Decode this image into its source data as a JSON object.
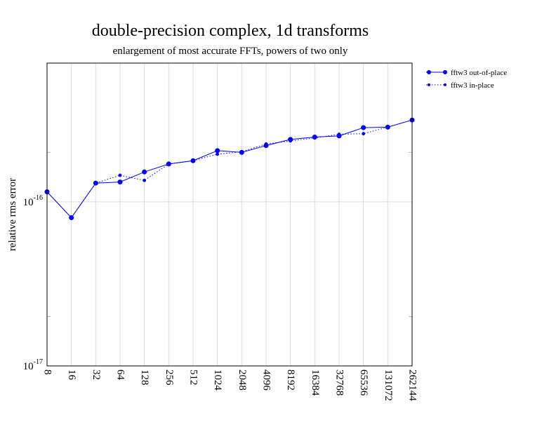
{
  "chart_data": {
    "type": "line",
    "title": "double-precision complex, 1d transforms",
    "subtitle": "enlargement of most accurate FFTs, powers of two only",
    "xlabel": "",
    "ylabel": "relative rms error",
    "x_scale": "log2",
    "y_scale": "log",
    "ylim": [
      1e-17,
      7e-16
    ],
    "categories": [
      "8",
      "16",
      "32",
      "64",
      "128",
      "256",
      "512",
      "1024",
      "2048",
      "4096",
      "8192",
      "16384",
      "32768",
      "65536",
      "131072",
      "262144"
    ],
    "y_ticks": [
      {
        "value": 1e-16,
        "base": "10",
        "exponent": "-16"
      },
      {
        "value": 1e-17,
        "base": "10",
        "exponent": "-17"
      }
    ],
    "grid": true,
    "legend_position": "right-outside-top",
    "series": [
      {
        "name": "fftw3 out-of-place",
        "style": "solid",
        "color": "#0000ff",
        "values": [
          1.15e-16,
          8e-17,
          1.3e-16,
          1.32e-16,
          1.52e-16,
          1.7e-16,
          1.78e-16,
          2.05e-16,
          2e-16,
          2.2e-16,
          2.4e-16,
          2.48e-16,
          2.52e-16,
          2.83e-16,
          2.85e-16,
          3.15e-16
        ]
      },
      {
        "name": "fftw3 in-place",
        "style": "dotted",
        "color": "#0000ff",
        "values": [
          1.15e-16,
          8e-17,
          1.3e-16,
          1.45e-16,
          1.35e-16,
          1.7e-16,
          1.78e-16,
          1.95e-16,
          2.02e-16,
          2.25e-16,
          2.35e-16,
          2.45e-16,
          2.58e-16,
          2.6e-16,
          2.85e-16,
          3.15e-16
        ]
      }
    ]
  }
}
